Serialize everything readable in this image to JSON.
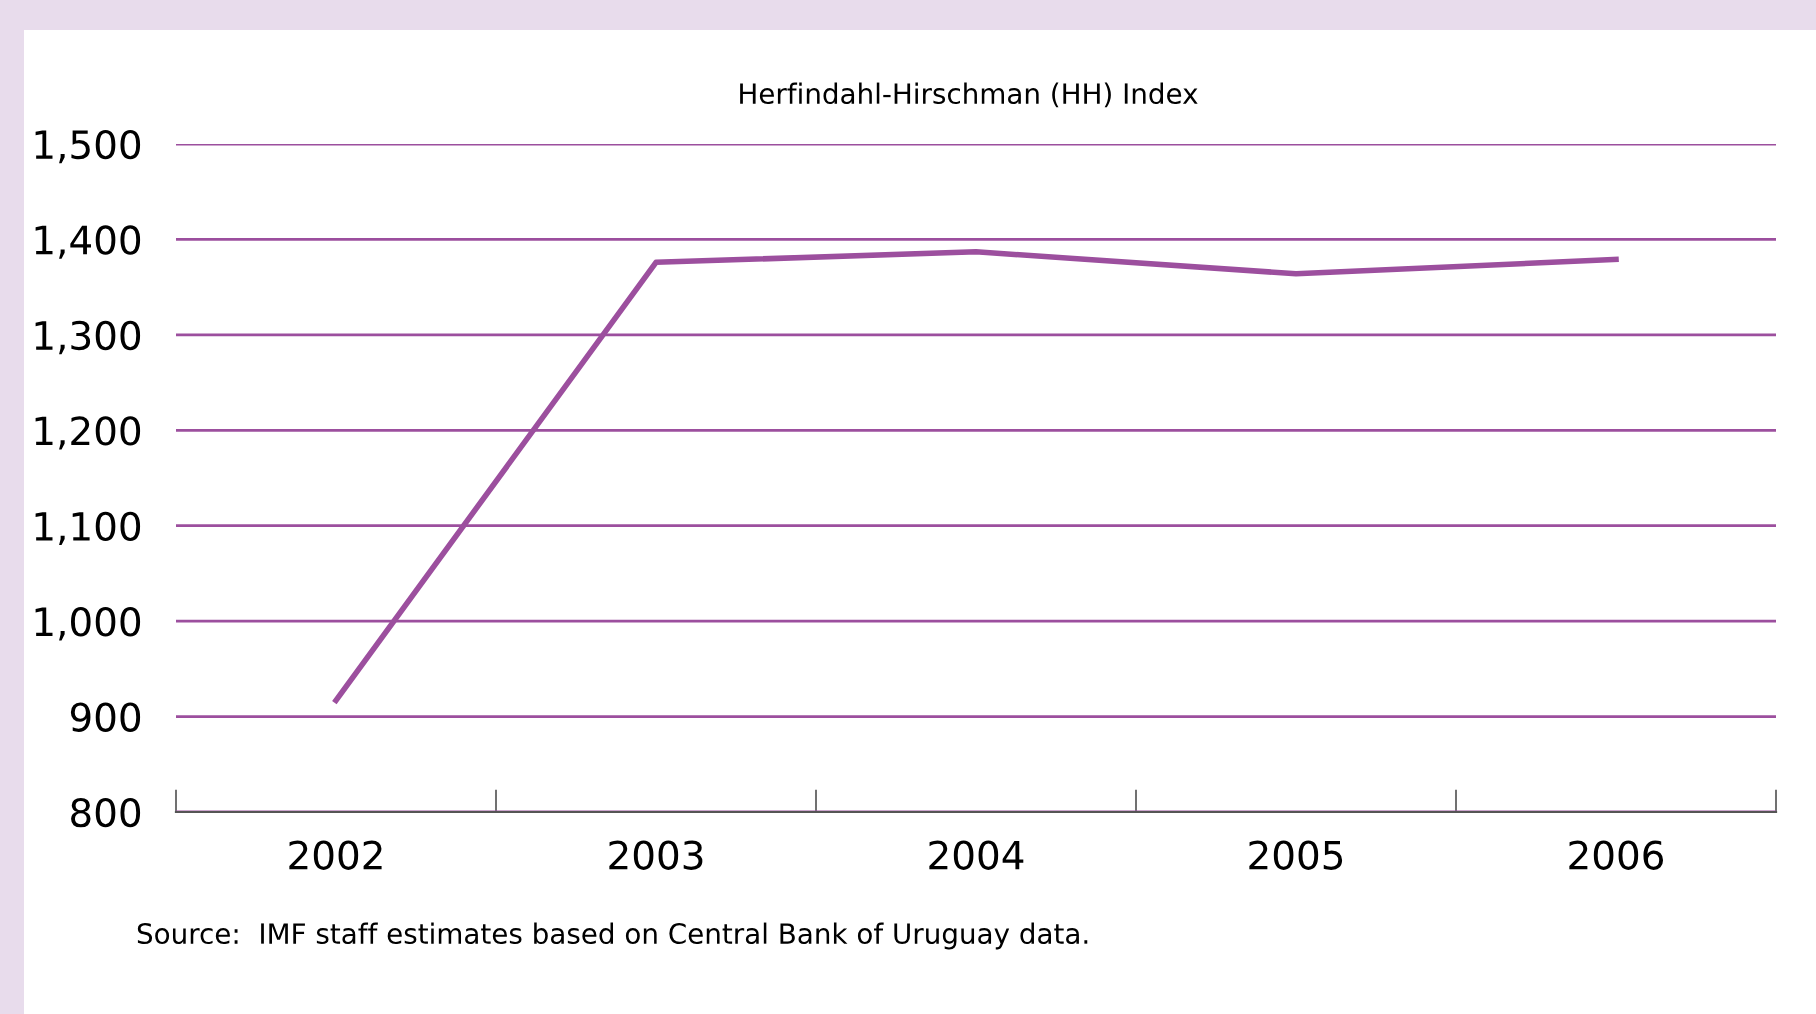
{
  "chart_data": {
    "type": "line",
    "title": "Herfindahl-Hirschman (HH) Index",
    "categories": [
      "2002",
      "2003",
      "2004",
      "2005",
      "2006"
    ],
    "series": [
      {
        "color": "#9c4f9e",
        "values": [
          917,
          1376,
          1387,
          1364,
          1379
        ]
      }
    ],
    "ylim": [
      800,
      1500
    ],
    "yticks": [
      {
        "value": 800,
        "label": "800"
      },
      {
        "value": 900,
        "label": "900"
      },
      {
        "value": 1000,
        "label": "1,000"
      },
      {
        "value": 1100,
        "label": "1,100"
      },
      {
        "value": 1200,
        "label": "1,200"
      },
      {
        "value": 1300,
        "label": "1,300"
      },
      {
        "value": 1400,
        "label": "1,400"
      },
      {
        "value": 1500,
        "label": "1,500"
      }
    ],
    "grid": "y",
    "marker": "none",
    "line_style": "solid",
    "legend": false,
    "annotations": [
      "Source:  IMF staff estimates based on Central Bank of Uruguay data."
    ]
  }
}
